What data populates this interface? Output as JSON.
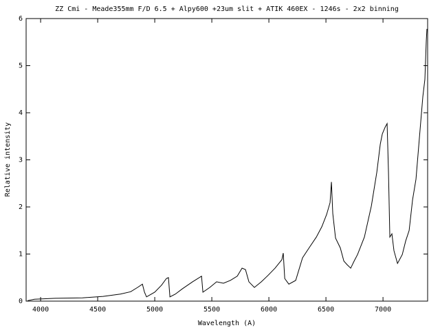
{
  "chart_data": {
    "type": "line",
    "title": "ZZ Cmi - Meade355mm F/D 6.5 + Alpy600 +23um slit  + ATIK 460EX - 1246s - 2x2 binning",
    "x_label": "Wavelength (A)",
    "y_label": "Relative intensity",
    "xlim": [
      3873,
      7391
    ],
    "xticks": [
      4000,
      4500,
      5000,
      5500,
      6000,
      6500,
      7000
    ],
    "ylim": [
      0,
      6
    ],
    "yticks": [
      0,
      1,
      2,
      3,
      4,
      5,
      6
    ],
    "series": [
      {
        "color": "#000000",
        "x": [
          3886,
          3946,
          4127,
          4367,
          4548,
          4699,
          4789,
          4849,
          4892,
          4910,
          4928,
          5000,
          5060,
          5102,
          5120,
          5133,
          5181,
          5241,
          5331,
          5410,
          5422,
          5482,
          5542,
          5602,
          5663,
          5723,
          5765,
          5795,
          5825,
          5873,
          5934,
          5994,
          6054,
          6114,
          6126,
          6139,
          6175,
          6235,
          6295,
          6355,
          6416,
          6464,
          6506,
          6536,
          6548,
          6560,
          6584,
          6626,
          6657,
          6687,
          6717,
          6747,
          6777,
          6837,
          6898,
          6946,
          6976,
          6994,
          7018,
          7036,
          7048,
          7060,
          7078,
          7096,
          7127,
          7169,
          7199,
          7229,
          7259,
          7289,
          7319,
          7349,
          7367,
          7379,
          7385
        ],
        "values": [
          0.01,
          0.04,
          0.06,
          0.07,
          0.1,
          0.15,
          0.2,
          0.29,
          0.36,
          0.19,
          0.09,
          0.19,
          0.34,
          0.48,
          0.5,
          0.09,
          0.15,
          0.26,
          0.41,
          0.53,
          0.19,
          0.29,
          0.41,
          0.38,
          0.44,
          0.53,
          0.7,
          0.67,
          0.41,
          0.29,
          0.41,
          0.55,
          0.7,
          0.88,
          1.02,
          0.48,
          0.36,
          0.44,
          0.92,
          1.14,
          1.36,
          1.58,
          1.84,
          2.09,
          2.53,
          1.86,
          1.34,
          1.13,
          0.85,
          0.77,
          0.7,
          0.85,
          0.99,
          1.36,
          2.02,
          2.74,
          3.33,
          3.55,
          3.69,
          3.77,
          2.74,
          1.36,
          1.43,
          1.07,
          0.8,
          0.99,
          1.28,
          1.5,
          2.15,
          2.59,
          3.47,
          4.34,
          4.71,
          5.52,
          5.78
        ]
      }
    ]
  }
}
